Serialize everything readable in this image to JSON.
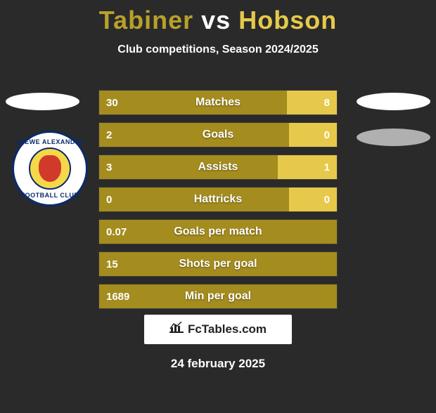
{
  "title_left": "Tabiner",
  "title_vs": "vs",
  "title_right": "Hobson",
  "title_color_left": "#b8a02a",
  "title_color_right": "#e6c94a",
  "subtitle": "Club competitions, Season 2024/2025",
  "bar_left_color": "#a48c1e",
  "bar_right_color": "#e6c94a",
  "rows": [
    {
      "label": "Matches",
      "left": "30",
      "right": "8",
      "left_pct": 78.9,
      "right_pct": 21.1
    },
    {
      "label": "Goals",
      "left": "2",
      "right": "0",
      "left_pct": 80.0,
      "right_pct": 20.0
    },
    {
      "label": "Assists",
      "left": "3",
      "right": "1",
      "left_pct": 75.0,
      "right_pct": 25.0
    },
    {
      "label": "Hattricks",
      "left": "0",
      "right": "0",
      "left_pct": 80.0,
      "right_pct": 20.0
    },
    {
      "label": "Goals per match",
      "left": "0.07",
      "right": "",
      "left_pct": 100,
      "right_pct": 0
    },
    {
      "label": "Shots per goal",
      "left": "15",
      "right": "",
      "left_pct": 100,
      "right_pct": 0
    },
    {
      "label": "Min per goal",
      "left": "1689",
      "right": "",
      "left_pct": 100,
      "right_pct": 0
    }
  ],
  "badge_text_top": "CREWE ALEXANDRA",
  "badge_text_bot": "FOOTBALL CLUB",
  "logo_text": "FcTables.com",
  "date": "24 february 2025"
}
